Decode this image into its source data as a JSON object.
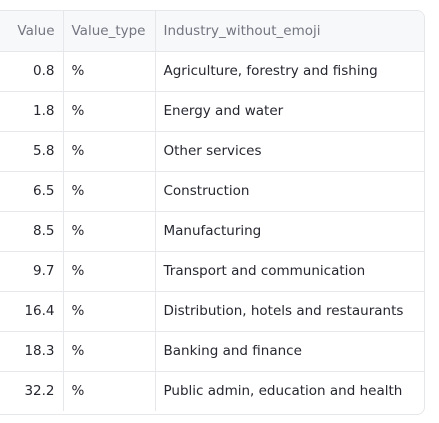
{
  "table": {
    "columns": [
      "Value",
      "Value_type",
      "Industry_without_emoji"
    ],
    "rows": [
      {
        "value": "0.8",
        "value_type": "%",
        "industry": "Agriculture, forestry and fishing"
      },
      {
        "value": "1.8",
        "value_type": "%",
        "industry": "Energy and water"
      },
      {
        "value": "5.8",
        "value_type": "%",
        "industry": "Other services"
      },
      {
        "value": "6.5",
        "value_type": "%",
        "industry": "Construction"
      },
      {
        "value": "8.5",
        "value_type": "%",
        "industry": "Manufacturing"
      },
      {
        "value": "9.7",
        "value_type": "%",
        "industry": "Transport and communication"
      },
      {
        "value": "16.4",
        "value_type": "%",
        "industry": "Distribution, hotels and restaurants"
      },
      {
        "value": "18.3",
        "value_type": "%",
        "industry": "Banking and finance"
      },
      {
        "value": "32.2",
        "value_type": "%",
        "industry": "Public admin, education and health"
      }
    ]
  }
}
